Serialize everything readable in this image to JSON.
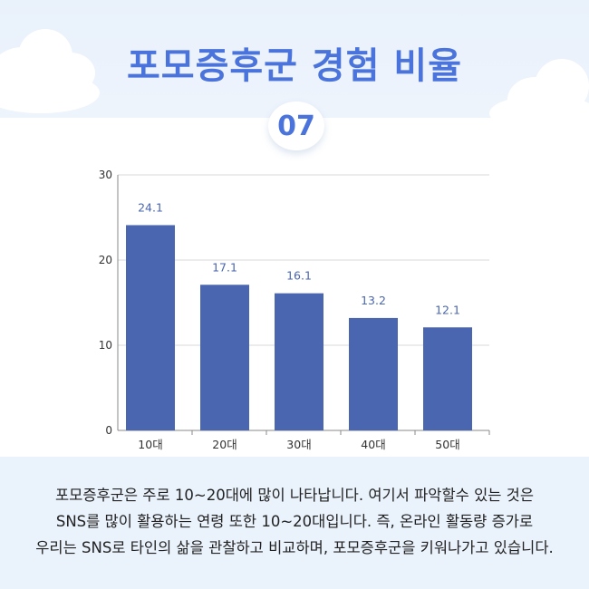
{
  "header": {
    "title": "포모증후군 경험 비율",
    "badge": "07"
  },
  "chart_data": {
    "type": "bar",
    "categories": [
      "10대",
      "20대",
      "30대",
      "40대",
      "50대"
    ],
    "values": [
      24.1,
      17.1,
      16.1,
      13.2,
      12.1
    ],
    "data_labels": [
      "24.1",
      "17.1",
      "16.1",
      "13.2",
      "12.1"
    ],
    "title": "",
    "xlabel": "",
    "ylabel": "",
    "ylim": [
      0,
      30
    ],
    "yticks": [
      0,
      10,
      20,
      30
    ],
    "grid": true,
    "bar_color": "#4a66b0",
    "label_color": "#4a66b0"
  },
  "caption": {
    "lines": [
      "포모증후군은 주로 10~20대에 많이 나타납니다. 여기서 파악할수 있는 것은",
      "SNS를 많이 활용하는 연령 또한 10~20대입니다. 즉, 온라인 활동량 증가로",
      "우리는 SNS로 타인의 삶을 관찰하고 비교하며, 포모증후군을 키워나가고 있습니다."
    ]
  },
  "colors": {
    "accent": "#4a74dc",
    "band": "#eaf2fc"
  }
}
